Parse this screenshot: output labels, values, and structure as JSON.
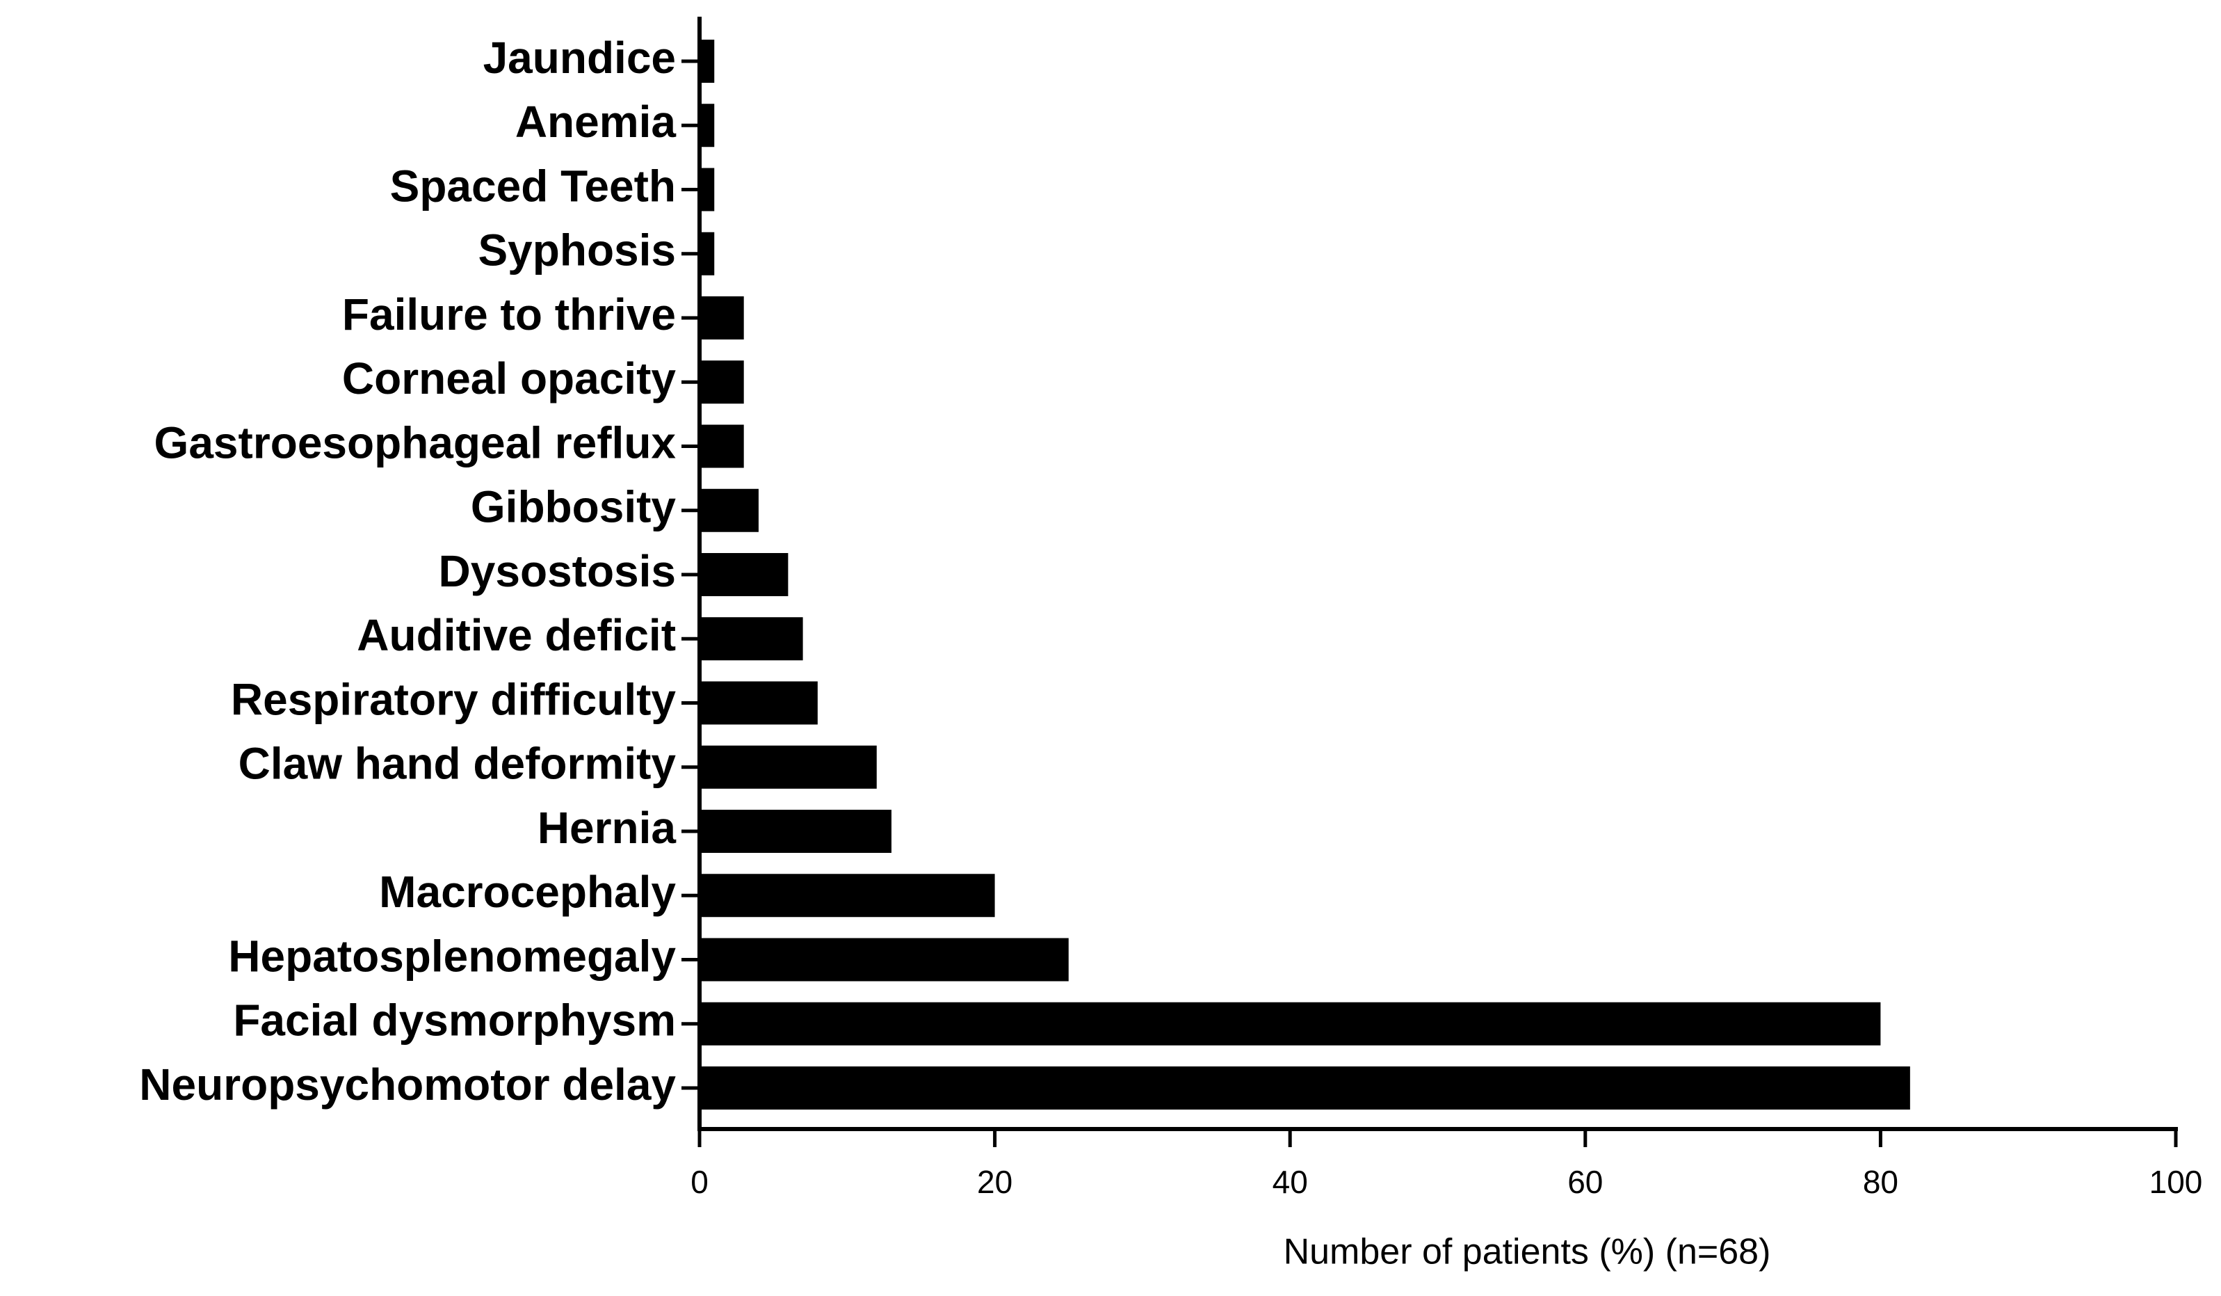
{
  "chart_data": {
    "type": "barh",
    "xlabel": "Number of patients (%) (n=68)",
    "categories": [
      "Jaundice",
      "Anemia",
      "Spaced Teeth",
      "Syphosis",
      "Failure to thrive",
      "Corneal opacity",
      "Gastroesophageal reflux",
      "Gibbosity",
      "Dysostosis",
      "Auditive deficit",
      "Respiratory difficulty",
      "Claw hand deformity",
      "Hernia",
      "Macrocephaly",
      "Hepatosplenomegaly",
      "Facial dysmorphysm",
      "Neuropsychomotor delay"
    ],
    "values": [
      1,
      1,
      1,
      1,
      3,
      3,
      3,
      4,
      6,
      7,
      8,
      12,
      13,
      20,
      25,
      80,
      82
    ],
    "color": "#000000",
    "xlim": [
      0,
      100
    ],
    "xticks": [
      0,
      20,
      40,
      60,
      80,
      100
    ],
    "grid": false
  }
}
